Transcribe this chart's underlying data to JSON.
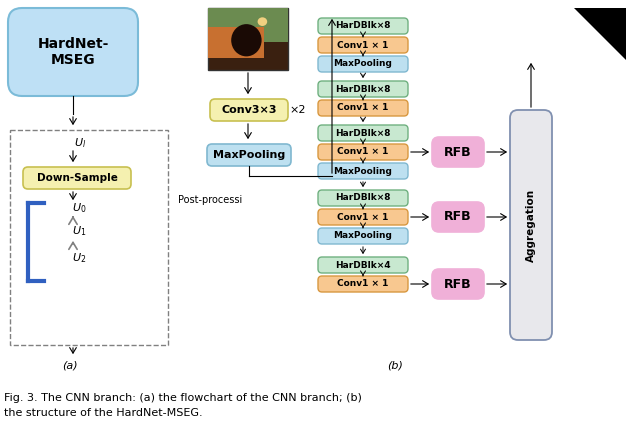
{
  "fig_width": 6.34,
  "fig_height": 4.46,
  "caption_line1": "Fig. 3. The CNN branch: (a) the flowchart of the CNN branch; (b)",
  "caption_line2": "the structure of the HardNet-MSEG.",
  "colors": {
    "hardnet_box": "#BEE0F5",
    "hardnet_border": "#7BBBD8",
    "yellow_box": "#F5F0B0",
    "yellow_border": "#C8C050",
    "blue_box": "#BDE0F0",
    "blue_border": "#80B8D0",
    "green_box": "#C8E8D0",
    "green_border": "#70B080",
    "orange_box": "#F8C890",
    "orange_border": "#D89840",
    "rfb_box": "#F0B0D8",
    "rfb_border": "#D080B0",
    "aggr_box": "#E8E8EC",
    "aggr_border": "#8090B0",
    "dashed_border": "#808080",
    "blue_bracket": "#3060C0"
  },
  "hardnet_text": "HardNet-\nMSEG",
  "conv3x3_text": "Conv3×3",
  "maxpooling_text": "MaxPooling",
  "downsample_text": "Down-Sample",
  "post_text": "Post-processi",
  "rfb_text": "RFB",
  "aggr_text": "Aggregation",
  "x2_text": "×2",
  "label_a": "(a)",
  "label_b": "(b)",
  "col_blocks": [
    {
      "label": "HarDBlk×8",
      "color_key": "green_box",
      "border_key": "green_border"
    },
    {
      "label": "Conv1 × 1",
      "color_key": "orange_box",
      "border_key": "orange_border"
    },
    {
      "label": "MaxPooling",
      "color_key": "blue_box",
      "border_key": "blue_border"
    },
    {
      "label": "HarDBlk×8",
      "color_key": "green_box",
      "border_key": "green_border"
    },
    {
      "label": "Conv1 × 1",
      "color_key": "orange_box",
      "border_key": "orange_border"
    },
    {
      "label": "HarDBlk×8",
      "color_key": "green_box",
      "border_key": "green_border"
    },
    {
      "label": "Conv1 × 1",
      "color_key": "orange_box",
      "border_key": "orange_border"
    },
    {
      "label": "MaxPooling",
      "color_key": "blue_box",
      "border_key": "blue_border"
    },
    {
      "label": "HarDBlk×8",
      "color_key": "green_box",
      "border_key": "green_border"
    },
    {
      "label": "Conv1 × 1",
      "color_key": "orange_box",
      "border_key": "orange_border"
    },
    {
      "label": "MaxPooling",
      "color_key": "blue_box",
      "border_key": "blue_border"
    },
    {
      "label": "HarDBlk×4",
      "color_key": "green_box",
      "border_key": "green_border"
    },
    {
      "label": "Conv1 × 1",
      "color_key": "orange_box",
      "border_key": "orange_border"
    }
  ]
}
